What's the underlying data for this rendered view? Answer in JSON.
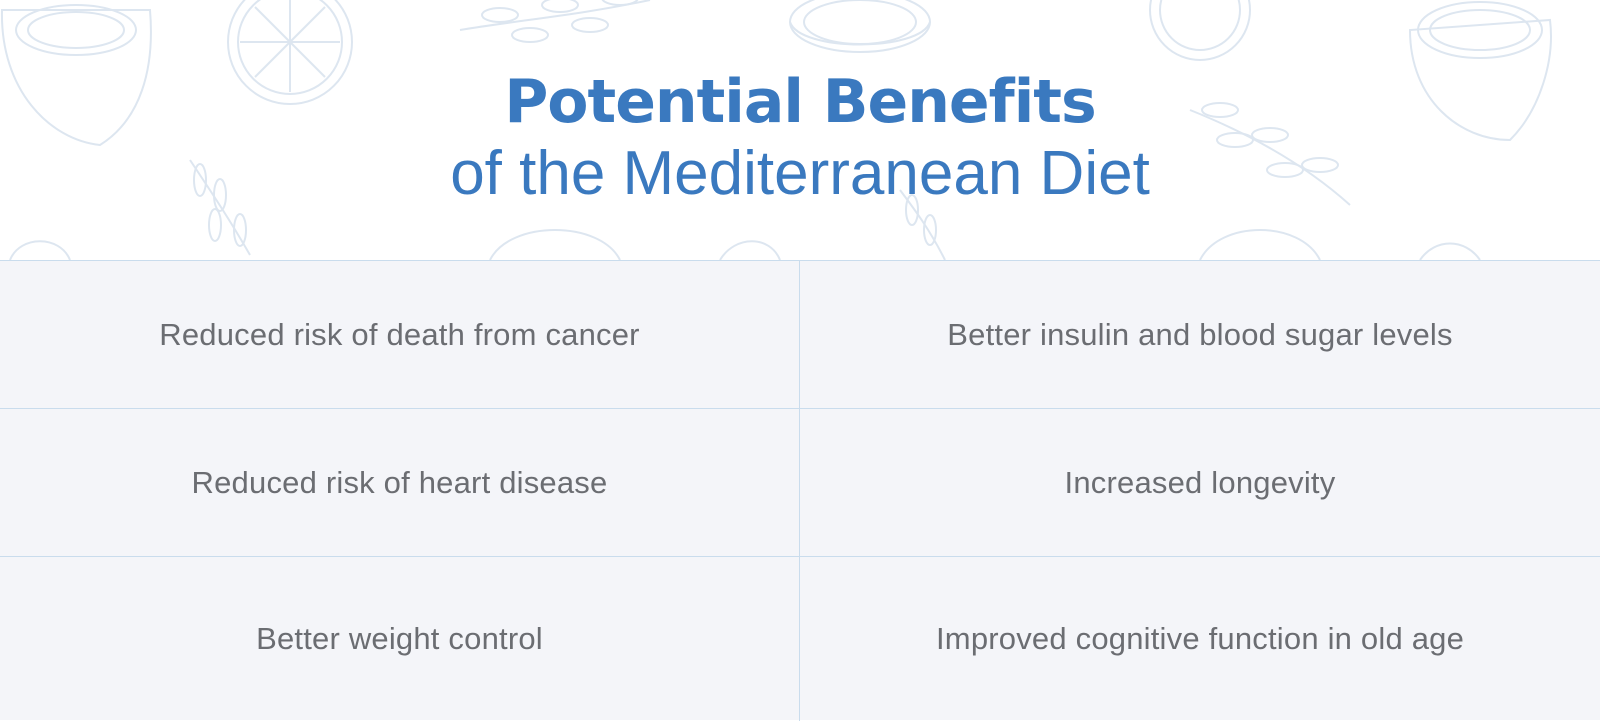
{
  "header": {
    "title_bold": "Potential Benefits",
    "title_light": "of the Mediterranean Diet"
  },
  "benefits": {
    "left": [
      "Reduced risk of death from cancer",
      "Reduced risk of heart disease",
      "Better weight control"
    ],
    "right": [
      "Better insulin and blood sugar levels",
      "Increased longevity",
      "Improved cognitive function in old age"
    ]
  },
  "colors": {
    "title": "#3a79bf",
    "text": "#6b6d72",
    "grid_background": "#f4f5f9",
    "grid_lines": "#c9dced",
    "pattern": "#dde6f0"
  }
}
